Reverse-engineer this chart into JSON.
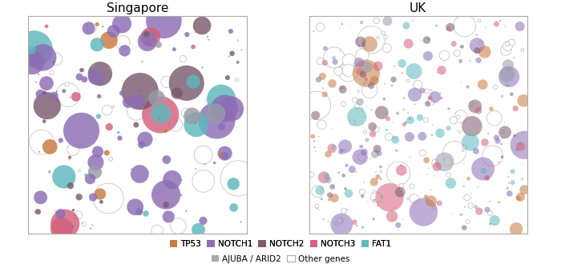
{
  "title_singapore": "Singapore",
  "title_uk": "UK",
  "background_color": "#ffffff",
  "colors": {
    "TP53": "#c87941",
    "NOTCH1": "#8b6db5",
    "NOTCH2": "#7a5a6e",
    "NOTCH3": "#d4607a",
    "FAT1": "#5db8be",
    "AJUBA_ARID2": "#9a9aaa",
    "other": "#ffffff"
  },
  "legend_labels": [
    "TP53",
    "NOTCH1",
    "NOTCH2",
    "NOTCH3",
    "FAT1",
    "AJUBA / ARID2",
    "Other genes"
  ],
  "legend_colors": [
    "#c87941",
    "#8b6db5",
    "#7a5a6e",
    "#d4607a",
    "#5db8be",
    "#9a9aaa",
    "#ffffff"
  ],
  "sg_seed": 42,
  "uk_seed": 77,
  "n_sg": 180,
  "n_uk": 350,
  "sg_weights": [
    0.09,
    0.27,
    0.14,
    0.07,
    0.09,
    0.05,
    0.29
  ],
  "uk_weights": [
    0.1,
    0.22,
    0.12,
    0.1,
    0.13,
    0.05,
    0.28
  ],
  "sg_alpha_filled": 0.82,
  "uk_alpha_filled": 0.55,
  "sg_size_scale": 0.038,
  "uk_size_scale": 0.028,
  "sg_max_size": 0.17,
  "uk_max_size": 0.13,
  "sg_min_size": 0.007,
  "uk_min_size": 0.005
}
